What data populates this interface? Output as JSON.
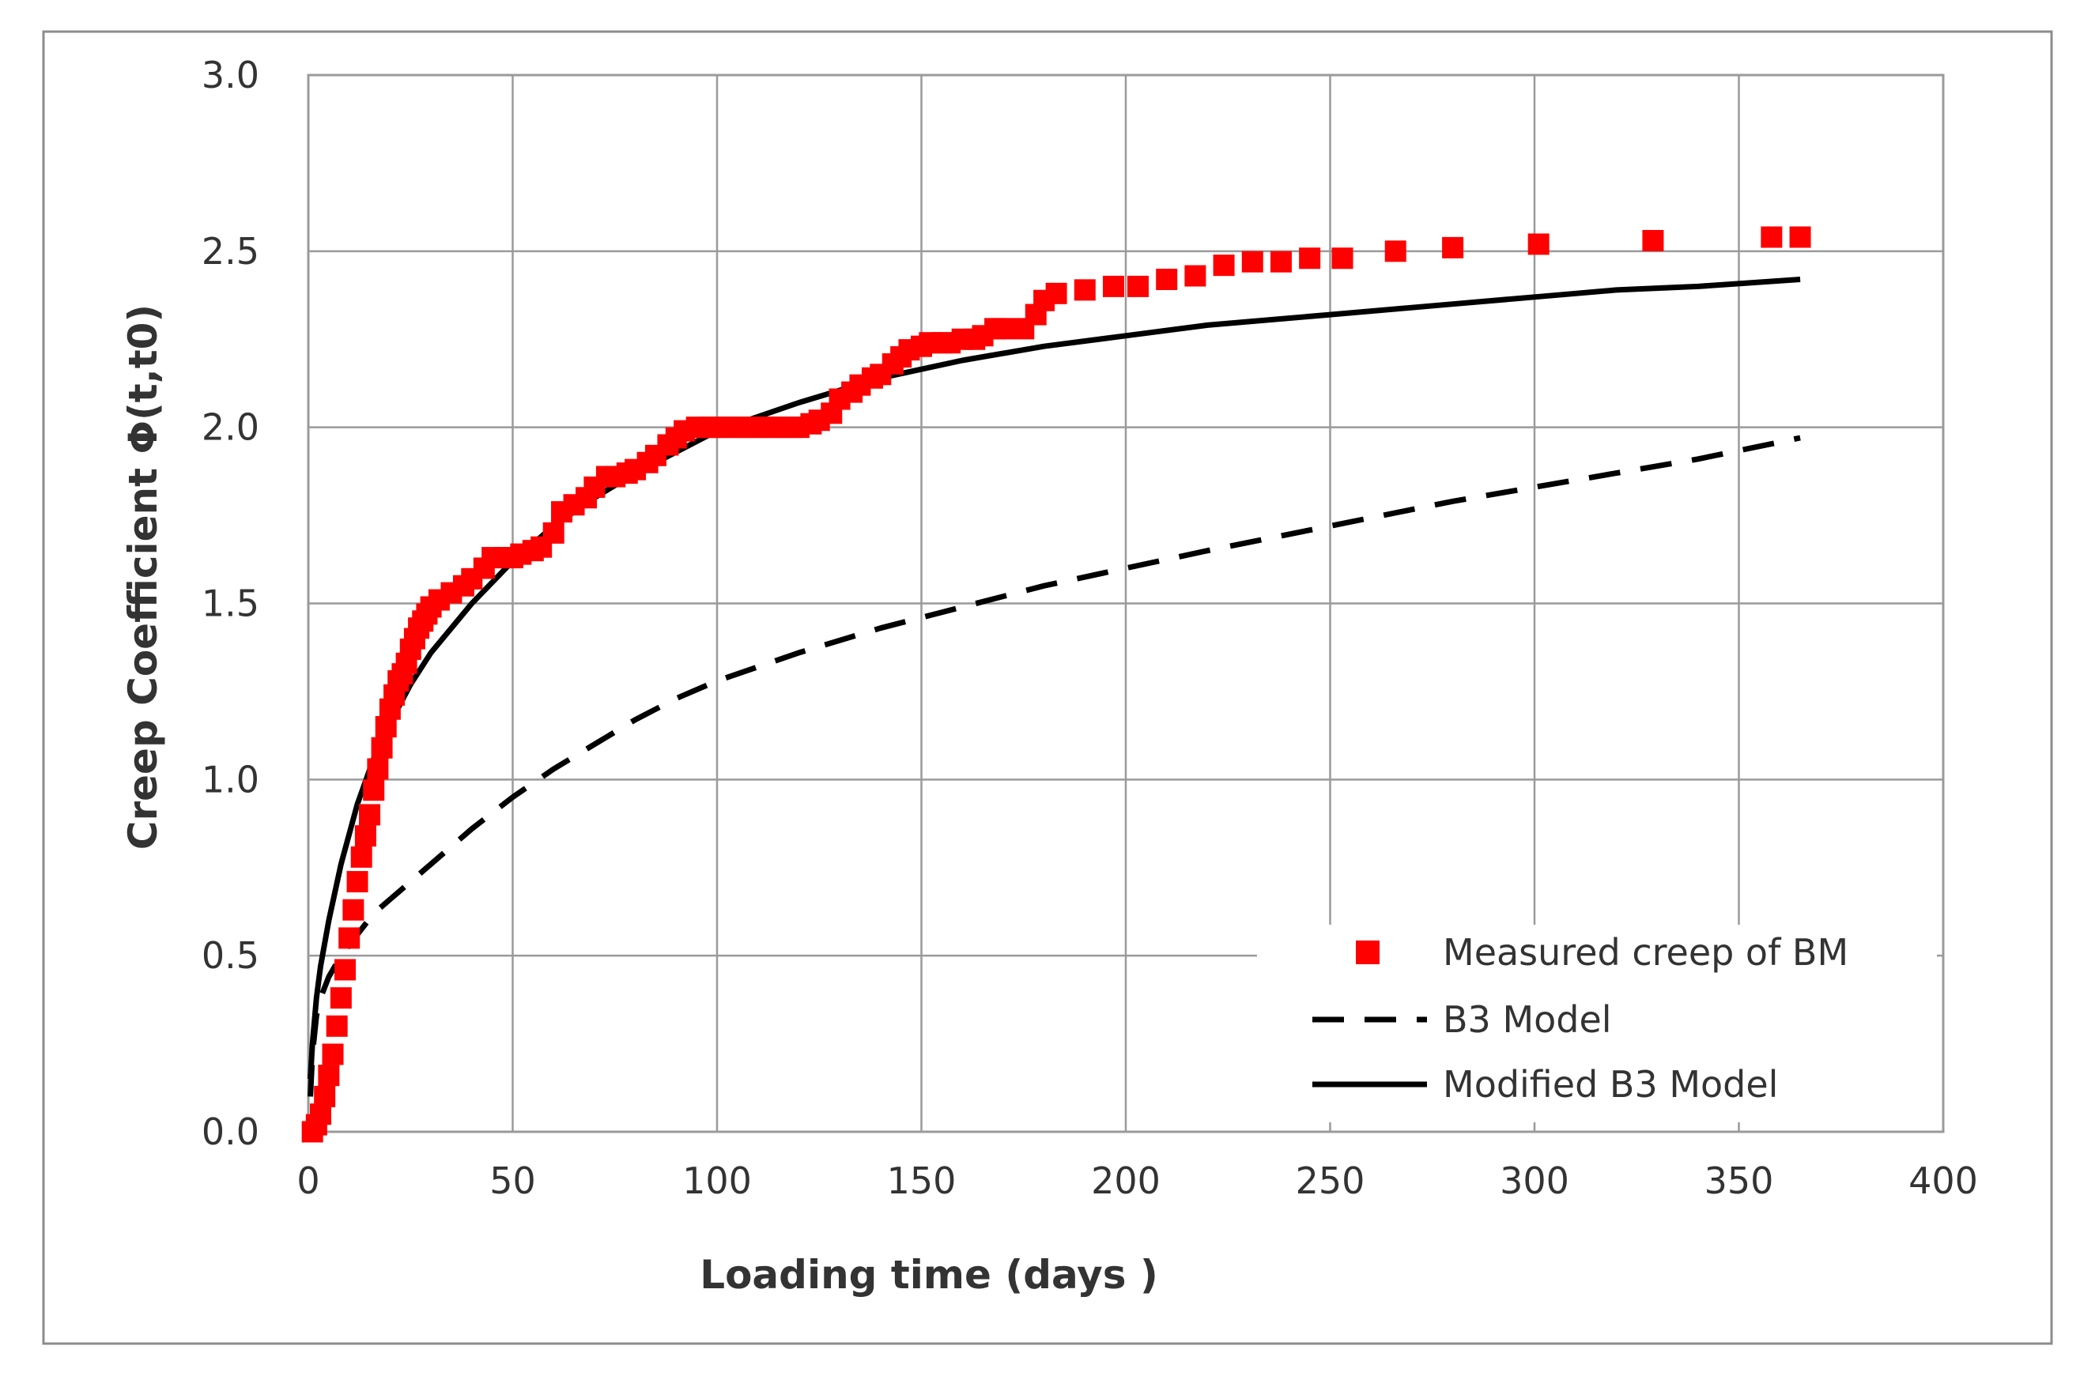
{
  "chart_data": {
    "type": "scatter",
    "title": "",
    "xlabel": "Loading time (days )",
    "ylabel": "Creep Coefficient Φ(t,t0)",
    "xlim": [
      0,
      400
    ],
    "ylim": [
      0,
      3.0
    ],
    "x_ticks": [
      0,
      50,
      100,
      150,
      200,
      250,
      300,
      350,
      400
    ],
    "y_ticks": [
      0.0,
      0.5,
      1.0,
      1.5,
      2.0,
      2.5,
      3.0
    ],
    "x_tick_labels": [
      "0",
      "50",
      "100",
      "150",
      "200",
      "250",
      "300",
      "350",
      "400"
    ],
    "y_tick_labels": [
      "0.0",
      "0.5",
      "1.0",
      "1.5",
      "2.0",
      "2.5",
      "3.0"
    ],
    "grid": true,
    "legend_position": "bottom-right",
    "series": [
      {
        "name": "Measured creep of BM",
        "kind": "markers",
        "marker": "square",
        "color": "#ff0000",
        "x": [
          1,
          2,
          3,
          4,
          5,
          6,
          7,
          8,
          9,
          10,
          11,
          12,
          13,
          14,
          15,
          16,
          17,
          18,
          19,
          20,
          21,
          22,
          23,
          24,
          25,
          26,
          27,
          28,
          29,
          30,
          32,
          35,
          38,
          40,
          43,
          45,
          48,
          50,
          52,
          55,
          57,
          60,
          62,
          65,
          68,
          70,
          73,
          75,
          78,
          80,
          83,
          85,
          88,
          90,
          92,
          95,
          98,
          100,
          103,
          105,
          108,
          110,
          113,
          115,
          118,
          120,
          123,
          125,
          128,
          130,
          133,
          135,
          138,
          140,
          143,
          145,
          147,
          150,
          152,
          155,
          157,
          160,
          163,
          165,
          168,
          170,
          175,
          178,
          180,
          183,
          190,
          197,
          203,
          210,
          217,
          224,
          231,
          238,
          245,
          253,
          266,
          280,
          301,
          329,
          358,
          365
        ],
        "y": [
          0.0,
          0.02,
          0.05,
          0.1,
          0.16,
          0.22,
          0.3,
          0.38,
          0.46,
          0.55,
          0.63,
          0.71,
          0.78,
          0.84,
          0.9,
          0.97,
          1.03,
          1.09,
          1.15,
          1.2,
          1.24,
          1.28,
          1.3,
          1.33,
          1.37,
          1.4,
          1.43,
          1.45,
          1.47,
          1.49,
          1.51,
          1.53,
          1.55,
          1.57,
          1.6,
          1.63,
          1.63,
          1.63,
          1.64,
          1.65,
          1.66,
          1.7,
          1.76,
          1.78,
          1.8,
          1.83,
          1.86,
          1.86,
          1.87,
          1.88,
          1.9,
          1.92,
          1.95,
          1.97,
          1.99,
          2.0,
          2.0,
          2.0,
          2.0,
          2.0,
          2.0,
          2.0,
          2.0,
          2.0,
          2.0,
          2.0,
          2.01,
          2.02,
          2.04,
          2.08,
          2.1,
          2.12,
          2.14,
          2.15,
          2.18,
          2.2,
          2.22,
          2.23,
          2.24,
          2.24,
          2.24,
          2.25,
          2.25,
          2.26,
          2.28,
          2.28,
          2.28,
          2.32,
          2.36,
          2.38,
          2.39,
          2.4,
          2.4,
          2.42,
          2.43,
          2.46,
          2.47,
          2.47,
          2.48,
          2.48,
          2.5,
          2.51,
          2.52,
          2.53,
          2.54,
          2.54
        ]
      },
      {
        "name": "B3 Model",
        "kind": "line",
        "style": "dashed",
        "color": "#000000",
        "x": [
          0.5,
          1,
          2,
          3,
          5,
          8,
          12,
          16,
          20,
          30,
          40,
          50,
          60,
          70,
          80,
          90,
          100,
          120,
          140,
          160,
          180,
          200,
          220,
          250,
          280,
          300,
          320,
          340,
          365
        ],
        "y": [
          0.1,
          0.22,
          0.33,
          0.38,
          0.44,
          0.5,
          0.56,
          0.62,
          0.66,
          0.76,
          0.86,
          0.95,
          1.03,
          1.1,
          1.17,
          1.23,
          1.28,
          1.36,
          1.43,
          1.49,
          1.55,
          1.6,
          1.65,
          1.72,
          1.79,
          1.83,
          1.87,
          1.91,
          1.97
        ]
      },
      {
        "name": "Modified B3 Model",
        "kind": "line",
        "style": "solid",
        "color": "#000000",
        "x": [
          0.5,
          1,
          2,
          3,
          5,
          8,
          12,
          16,
          20,
          25,
          30,
          40,
          50,
          60,
          70,
          80,
          90,
          100,
          120,
          140,
          160,
          180,
          200,
          220,
          250,
          280,
          300,
          320,
          340,
          365
        ],
        "y": [
          0.15,
          0.25,
          0.38,
          0.47,
          0.6,
          0.76,
          0.93,
          1.06,
          1.16,
          1.27,
          1.36,
          1.5,
          1.62,
          1.72,
          1.8,
          1.87,
          1.93,
          1.99,
          2.07,
          2.14,
          2.19,
          2.23,
          2.26,
          2.29,
          2.32,
          2.35,
          2.37,
          2.39,
          2.4,
          2.42
        ]
      }
    ]
  }
}
